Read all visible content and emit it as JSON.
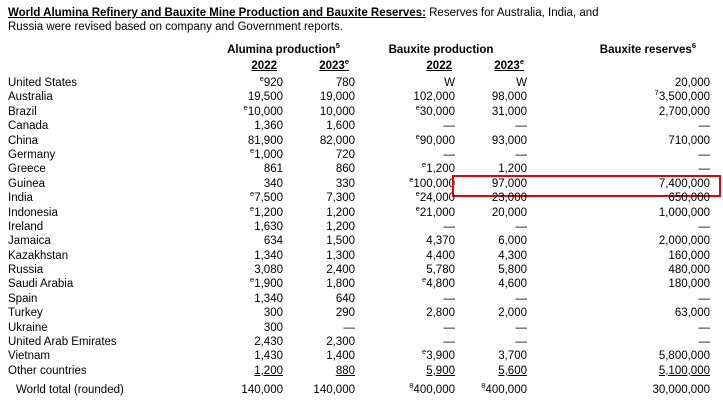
{
  "annotation": {
    "color": "#ee0000"
  },
  "title": {
    "bold": "World Alumina Refinery and Bauxite Mine Production and Bauxite Reserves:",
    "rest_line1": " Reserves for Australia, India, and",
    "line2": "Russia were revised based on company and Government reports."
  },
  "table": {
    "group_headers": [
      {
        "label": "Alumina production",
        "sup": "5"
      },
      {
        "label": "Bauxite production",
        "sup": ""
      },
      {
        "label": "Bauxite reserves",
        "sup": "6"
      }
    ],
    "year_headers": [
      {
        "label": "2022",
        "sup": ""
      },
      {
        "label": "2023",
        "sup": "e"
      },
      {
        "label": "2022",
        "sup": ""
      },
      {
        "label": "2023",
        "sup": "e"
      }
    ],
    "rows": [
      {
        "country": "United States",
        "cells": [
          {
            "sup": "e",
            "v": "920"
          },
          "780",
          "W",
          "W",
          "20,000"
        ]
      },
      {
        "country": "Australia",
        "cells": [
          "19,500",
          "19,000",
          "102,000",
          "98,000",
          {
            "sup": "7",
            "v": "3,500,000"
          }
        ]
      },
      {
        "country": "Brazil",
        "cells": [
          {
            "sup": "e",
            "v": "10,000"
          },
          "10,000",
          {
            "sup": "e",
            "v": "30,000"
          },
          "31,000",
          "2,700,000"
        ]
      },
      {
        "country": "Canada",
        "cells": [
          "1,360",
          "1,600",
          "—",
          "—",
          "—"
        ]
      },
      {
        "country": "China",
        "cells": [
          "81,900",
          "82,000",
          {
            "sup": "e",
            "v": "90,000"
          },
          "93,000",
          "710,000"
        ]
      },
      {
        "country": "Germany",
        "cells": [
          {
            "sup": "e",
            "v": "1,000"
          },
          "720",
          "—",
          "—",
          "—"
        ]
      },
      {
        "country": "Greece",
        "cells": [
          "861",
          "860",
          {
            "sup": "e",
            "v": "1,200"
          },
          "1,200",
          "—"
        ]
      },
      {
        "country": "Guinea",
        "highlight": true,
        "cells": [
          "340",
          "330",
          {
            "sup": "e",
            "v": "100,000"
          },
          "97,000",
          "7,400,000"
        ]
      },
      {
        "country": "India",
        "cells": [
          {
            "sup": "e",
            "v": "7,500"
          },
          "7,300",
          {
            "sup": "e",
            "v": "24,000"
          },
          "23,000",
          "650,000"
        ]
      },
      {
        "country": "Indonesia",
        "cells": [
          {
            "sup": "e",
            "v": "1,200"
          },
          "1,200",
          {
            "sup": "e",
            "v": "21,000"
          },
          "20,000",
          "1,000,000"
        ]
      },
      {
        "country": "Ireland",
        "cells": [
          "1,630",
          "1,200",
          "—",
          "—",
          "—"
        ]
      },
      {
        "country": "Jamaica",
        "cells": [
          "634",
          "1,500",
          "4,370",
          "6,000",
          "2,000,000"
        ]
      },
      {
        "country": "Kazakhstan",
        "cells": [
          "1,340",
          "1,300",
          "4,400",
          "4,300",
          "160,000"
        ]
      },
      {
        "country": "Russia",
        "cells": [
          "3,080",
          "2,400",
          "5,780",
          "5,800",
          "480,000"
        ]
      },
      {
        "country": "Saudi Arabia",
        "cells": [
          {
            "sup": "e",
            "v": "1,900"
          },
          "1,800",
          {
            "sup": "e",
            "v": "4,800"
          },
          "4,600",
          "180,000"
        ]
      },
      {
        "country": "Spain",
        "cells": [
          "1,340",
          "640",
          "—",
          "—",
          "—"
        ]
      },
      {
        "country": "Turkey",
        "cells": [
          "300",
          "290",
          "2,800",
          "2,000",
          "63,000"
        ]
      },
      {
        "country": "Ukraine",
        "cells": [
          "300",
          "—",
          "—",
          "—",
          "—"
        ]
      },
      {
        "country": "United Arab Emirates",
        "cells": [
          "2,430",
          "2,300",
          "—",
          "—",
          "—"
        ]
      },
      {
        "country": "Vietnam",
        "cells": [
          "1,430",
          "1,400",
          {
            "sup": "e",
            "v": "3,900"
          },
          "3,700",
          "5,800,000"
        ]
      },
      {
        "country": "Other countries",
        "underline": true,
        "cells": [
          "1,200",
          "880",
          "5,900",
          "5,600",
          "5,100,000"
        ]
      },
      {
        "country": "World total (rounded)",
        "total": true,
        "cells": [
          "140,000",
          "140,000",
          {
            "sup": "8",
            "v": "400,000"
          },
          {
            "sup": "8",
            "v": "400,000"
          },
          "30,000,000"
        ]
      }
    ]
  }
}
